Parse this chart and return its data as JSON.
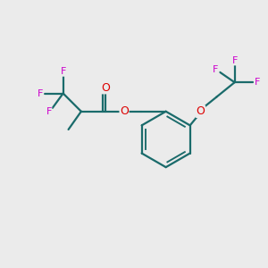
{
  "bg_color": "#ebebeb",
  "bond_color": "#1a6b6b",
  "bond_width": 1.6,
  "O_color": "#dd0000",
  "F_color": "#cc00cc",
  "font_size": 8.0,
  "fig_size": [
    3.0,
    3.0
  ],
  "dpi": 100,
  "xlim": [
    0,
    10
  ],
  "ylim": [
    0,
    10
  ]
}
